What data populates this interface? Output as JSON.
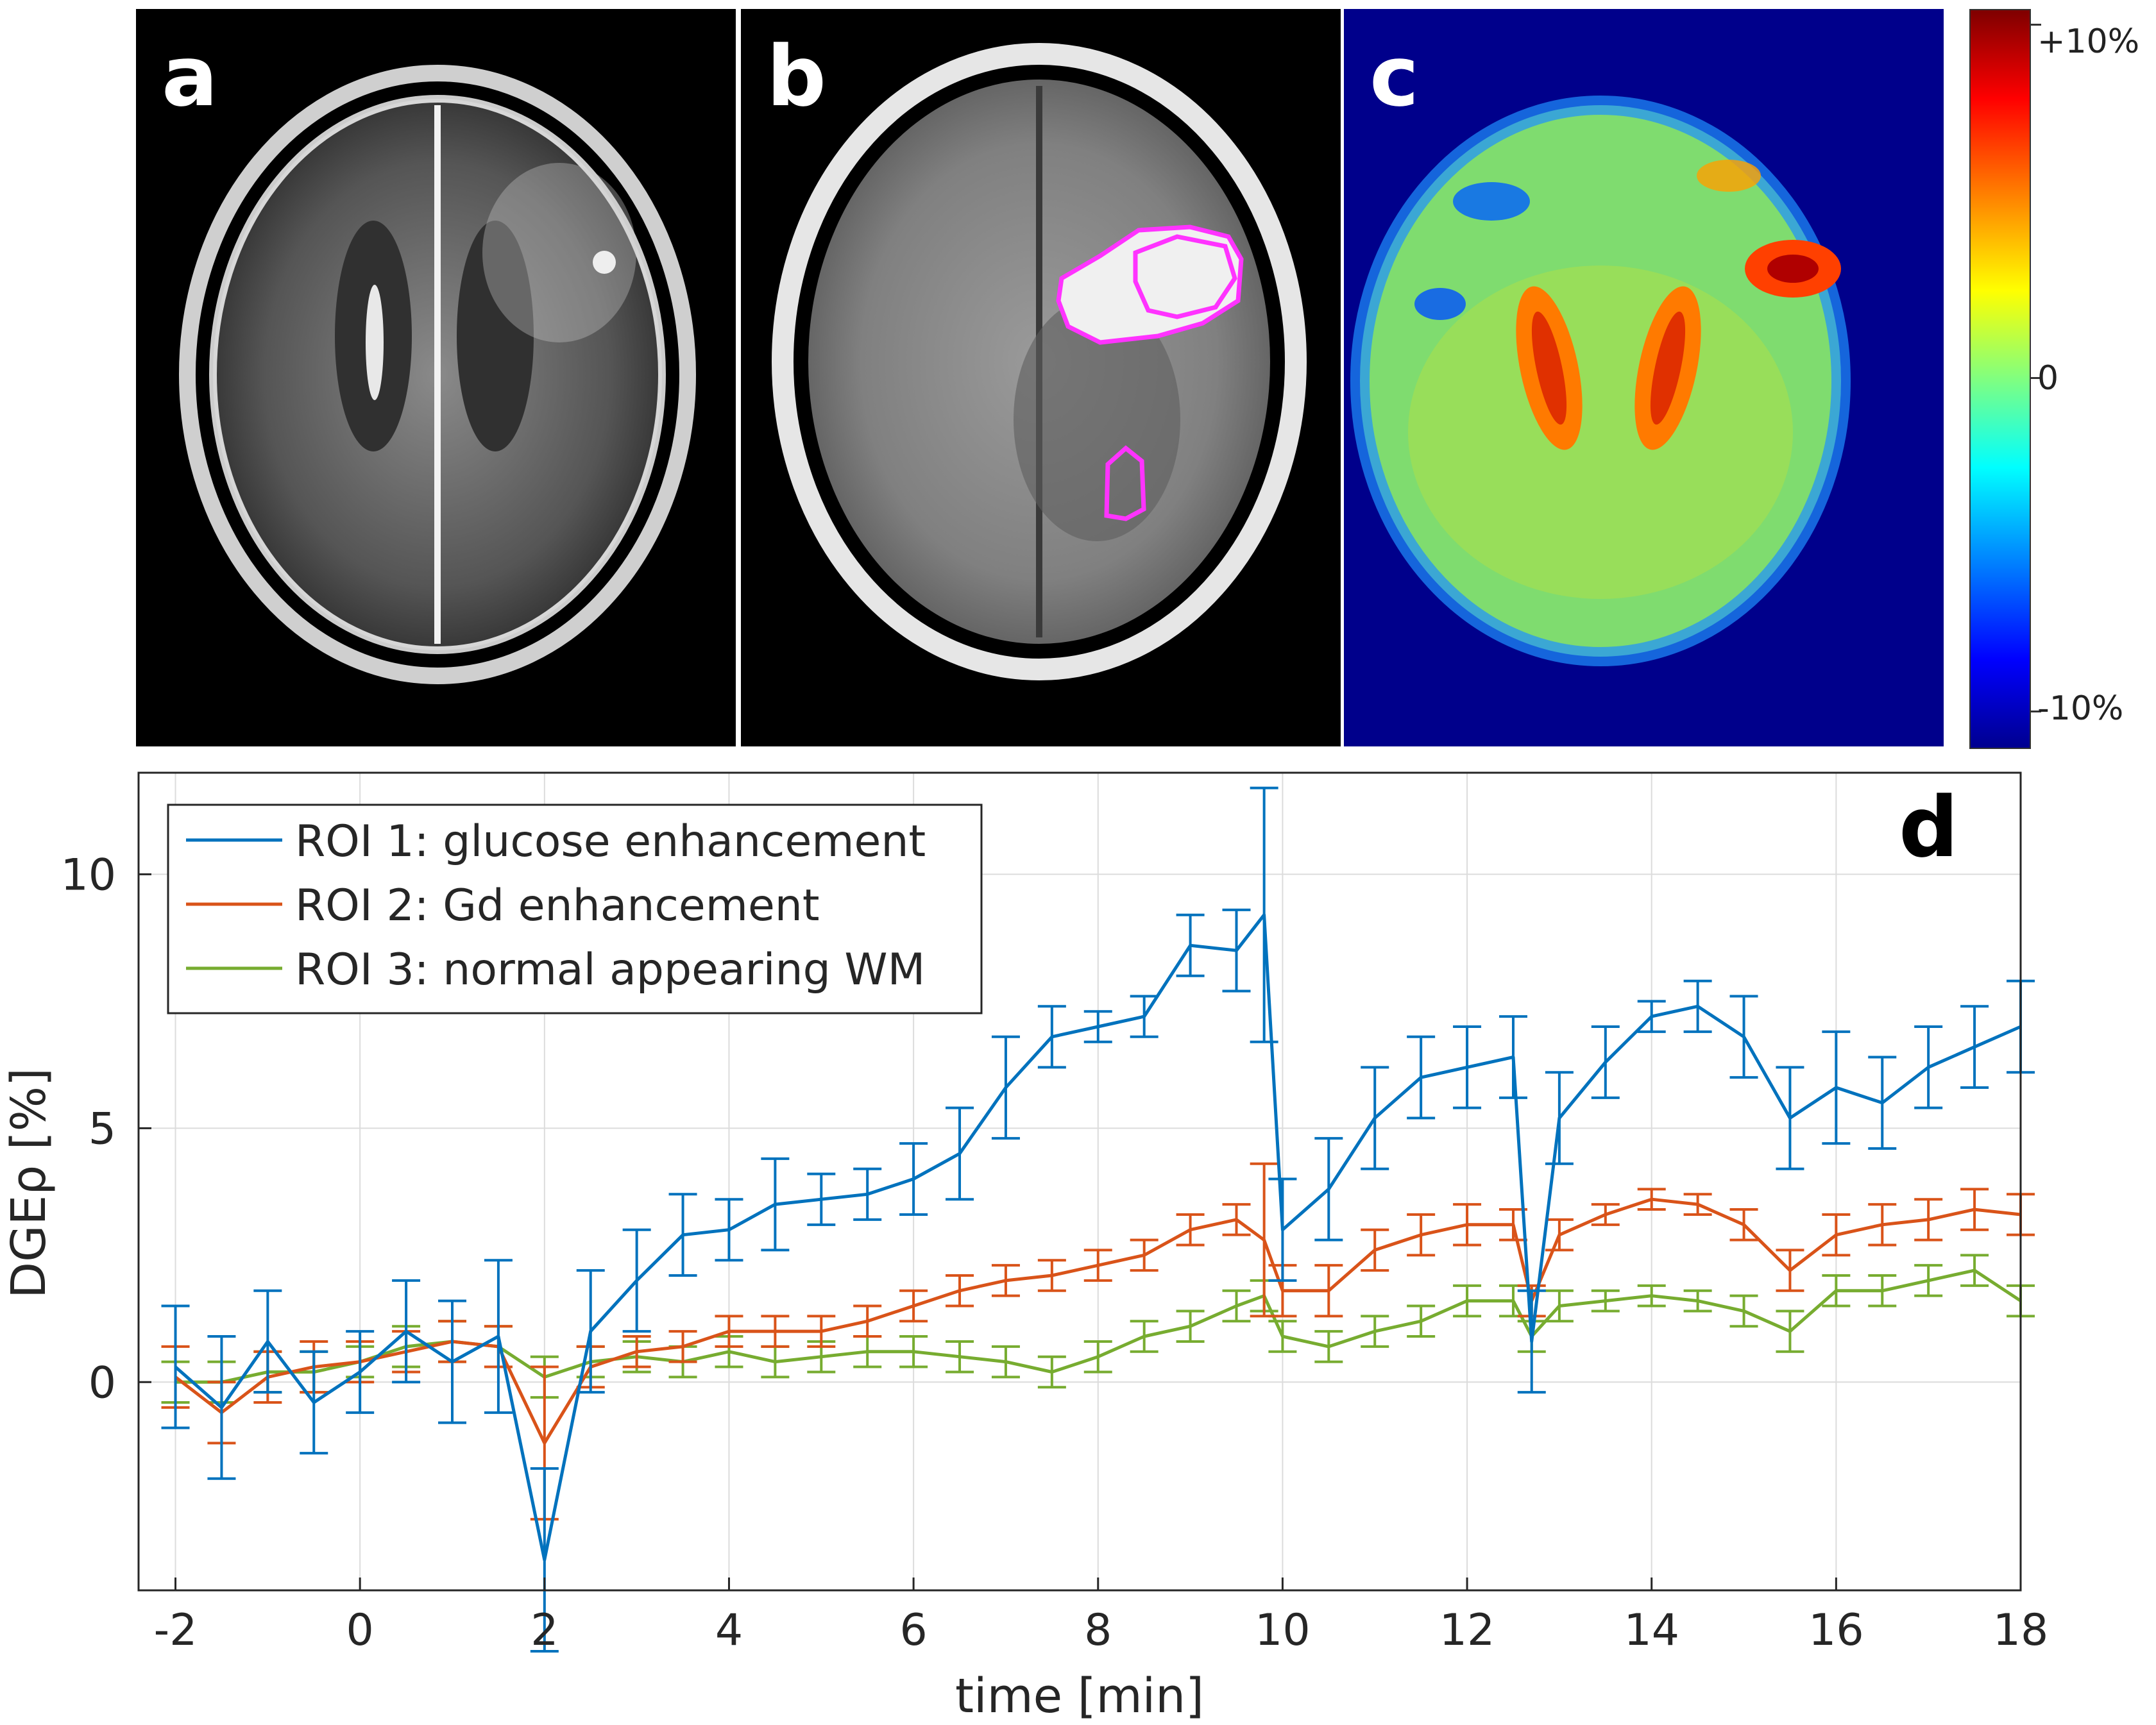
{
  "panels": {
    "a": {
      "label": "a"
    },
    "b": {
      "label": "b"
    },
    "c": {
      "label": "c"
    },
    "d": {
      "label": "d"
    }
  },
  "colorbar": {
    "top_label": "+10%",
    "mid_label": "0",
    "bottom_label": "-10%",
    "colors": [
      "#7f0000",
      "#ff0000",
      "#ff8000",
      "#ffff00",
      "#80ff80",
      "#00ffff",
      "#0080ff",
      "#0000ff",
      "#00008f"
    ]
  },
  "colors": {
    "roi_contour": "#ff33ff",
    "map_background": "#00008b",
    "series": [
      "#0072bd",
      "#d95319",
      "#77ac30"
    ]
  },
  "chart_data": {
    "type": "line",
    "xlabel": "time [min]",
    "ylabel": "DGEρ [%]",
    "xlim": [
      -2.4,
      18
    ],
    "ylim": [
      -4.1,
      12
    ],
    "xticks": [
      -2,
      0,
      2,
      4,
      6,
      8,
      10,
      12,
      14,
      16,
      18
    ],
    "yticks": [
      0,
      5,
      10
    ],
    "grid": true,
    "error_bars": true,
    "legend_position": "top-left",
    "x": [
      -2,
      -1.5,
      -1,
      -0.5,
      0,
      0.5,
      1,
      1.5,
      2,
      2.5,
      3,
      3.5,
      4,
      4.5,
      5,
      5.5,
      6,
      6.5,
      7,
      7.5,
      8,
      8.5,
      9,
      9.5,
      9.8,
      10,
      10.5,
      11,
      11.5,
      12,
      12.5,
      12.7,
      13,
      13.5,
      14,
      14.5,
      15,
      15.5,
      16,
      16.5,
      17,
      17.5,
      18
    ],
    "series": [
      {
        "name": "ROI 1: glucose enhancement",
        "values": [
          0.3,
          -0.5,
          0.8,
          -0.4,
          0.2,
          1.0,
          0.4,
          0.9,
          -3.5,
          1.0,
          2.0,
          2.9,
          3.0,
          3.5,
          3.6,
          3.7,
          4.0,
          4.5,
          5.8,
          6.8,
          7.0,
          7.2,
          8.6,
          8.5,
          9.2,
          3.0,
          3.8,
          5.2,
          6.0,
          6.2,
          6.4,
          0.8,
          5.2,
          6.3,
          7.2,
          7.4,
          6.8,
          5.2,
          5.8,
          5.5,
          6.2,
          6.6,
          7.0
        ],
        "errors": [
          1.2,
          1.4,
          1.0,
          1.0,
          0.8,
          1.0,
          1.2,
          1.5,
          1.8,
          1.2,
          1.0,
          0.8,
          0.6,
          0.9,
          0.5,
          0.5,
          0.7,
          0.9,
          1.0,
          0.6,
          0.3,
          0.4,
          0.6,
          0.8,
          2.5,
          1.0,
          1.0,
          1.0,
          0.8,
          0.8,
          0.8,
          1.0,
          0.9,
          0.7,
          0.3,
          0.5,
          0.8,
          1.0,
          1.1,
          0.9,
          0.8,
          0.8,
          0.9
        ]
      },
      {
        "name": "ROI 2: Gd enhancement",
        "values": [
          0.1,
          -0.6,
          0.1,
          0.3,
          0.4,
          0.6,
          0.8,
          0.7,
          -1.2,
          0.3,
          0.6,
          0.7,
          1.0,
          1.0,
          1.0,
          1.2,
          1.5,
          1.8,
          2.0,
          2.1,
          2.3,
          2.5,
          3.0,
          3.2,
          2.8,
          1.8,
          1.8,
          2.6,
          2.9,
          3.1,
          3.1,
          1.6,
          2.9,
          3.3,
          3.6,
          3.5,
          3.1,
          2.2,
          2.9,
          3.1,
          3.2,
          3.4,
          3.3
        ],
        "errors": [
          0.6,
          0.6,
          0.5,
          0.5,
          0.4,
          0.4,
          0.4,
          0.4,
          1.5,
          0.4,
          0.3,
          0.3,
          0.3,
          0.3,
          0.3,
          0.3,
          0.3,
          0.3,
          0.3,
          0.3,
          0.3,
          0.3,
          0.3,
          0.3,
          1.5,
          0.5,
          0.5,
          0.4,
          0.4,
          0.4,
          0.3,
          0.3,
          0.3,
          0.2,
          0.2,
          0.2,
          0.3,
          0.4,
          0.4,
          0.4,
          0.4,
          0.4,
          0.4
        ]
      },
      {
        "name": "ROI 3: normal appearing WM",
        "values": [
          0.0,
          0.0,
          0.2,
          0.2,
          0.4,
          0.7,
          0.8,
          0.7,
          0.1,
          0.4,
          0.5,
          0.4,
          0.6,
          0.4,
          0.5,
          0.6,
          0.6,
          0.5,
          0.4,
          0.2,
          0.5,
          0.9,
          1.1,
          1.5,
          1.7,
          0.9,
          0.7,
          1.0,
          1.2,
          1.6,
          1.6,
          0.9,
          1.5,
          1.6,
          1.7,
          1.6,
          1.4,
          1.0,
          1.8,
          1.8,
          2.0,
          2.2,
          1.6
        ],
        "errors": [
          0.4,
          0.4,
          0.4,
          0.4,
          0.3,
          0.4,
          0.4,
          0.4,
          0.4,
          0.3,
          0.3,
          0.3,
          0.3,
          0.3,
          0.3,
          0.3,
          0.3,
          0.3,
          0.3,
          0.3,
          0.3,
          0.3,
          0.3,
          0.3,
          0.3,
          0.3,
          0.3,
          0.3,
          0.3,
          0.3,
          0.3,
          0.3,
          0.3,
          0.2,
          0.2,
          0.2,
          0.3,
          0.4,
          0.3,
          0.3,
          0.3,
          0.3,
          0.3
        ]
      }
    ]
  }
}
